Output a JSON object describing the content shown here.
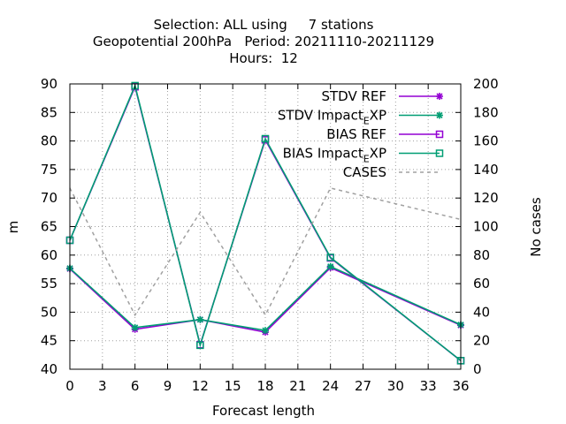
{
  "chart_data": {
    "type": "line",
    "title_lines": [
      "Selection: ALL using     7 stations",
      "Geopotential 200hPa   Period: 20211110-20211129",
      "Hours:  12"
    ],
    "xlabel": "Forecast length",
    "ylabel": "m",
    "y2label": "No cases",
    "xlim": [
      0,
      36
    ],
    "ylim": [
      40,
      90
    ],
    "y2lim": [
      0,
      200
    ],
    "xticks": [
      0,
      3,
      6,
      9,
      12,
      15,
      18,
      21,
      24,
      27,
      30,
      33,
      36
    ],
    "yticks": [
      40,
      45,
      50,
      55,
      60,
      65,
      70,
      75,
      80,
      85,
      90
    ],
    "y2ticks": [
      0,
      20,
      40,
      60,
      80,
      100,
      120,
      140,
      160,
      180,
      200
    ],
    "grid": true,
    "legend_position": "top-right",
    "x": [
      0,
      6,
      12,
      18,
      24,
      36
    ],
    "series": [
      {
        "name": "STDV REF",
        "axis": "y1",
        "marker": "star",
        "color": "#9400d3",
        "dash": false,
        "values": [
          57.6,
          47.0,
          48.7,
          46.5,
          57.8,
          47.7
        ]
      },
      {
        "name": "STDV Impact_EXP",
        "axis": "y1",
        "marker": "star",
        "color": "#009e73",
        "dash": false,
        "values": [
          57.7,
          47.3,
          48.7,
          46.8,
          58.0,
          47.8
        ]
      },
      {
        "name": "BIAS REF",
        "axis": "y1",
        "marker": "square",
        "color": "#9400d3",
        "dash": false,
        "values": [
          62.6,
          89.5,
          44.3,
          80.2,
          59.5,
          41.5
        ]
      },
      {
        "name": "BIAS Impact_EXP",
        "axis": "y1",
        "marker": "square",
        "color": "#009e73",
        "dash": false,
        "values": [
          62.6,
          89.7,
          44.2,
          80.4,
          59.6,
          41.5
        ]
      },
      {
        "name": "CASES",
        "axis": "y2",
        "marker": "none",
        "color": "#a0a0a0",
        "dash": true,
        "values": [
          127,
          38,
          110,
          38,
          127,
          105
        ]
      }
    ]
  }
}
